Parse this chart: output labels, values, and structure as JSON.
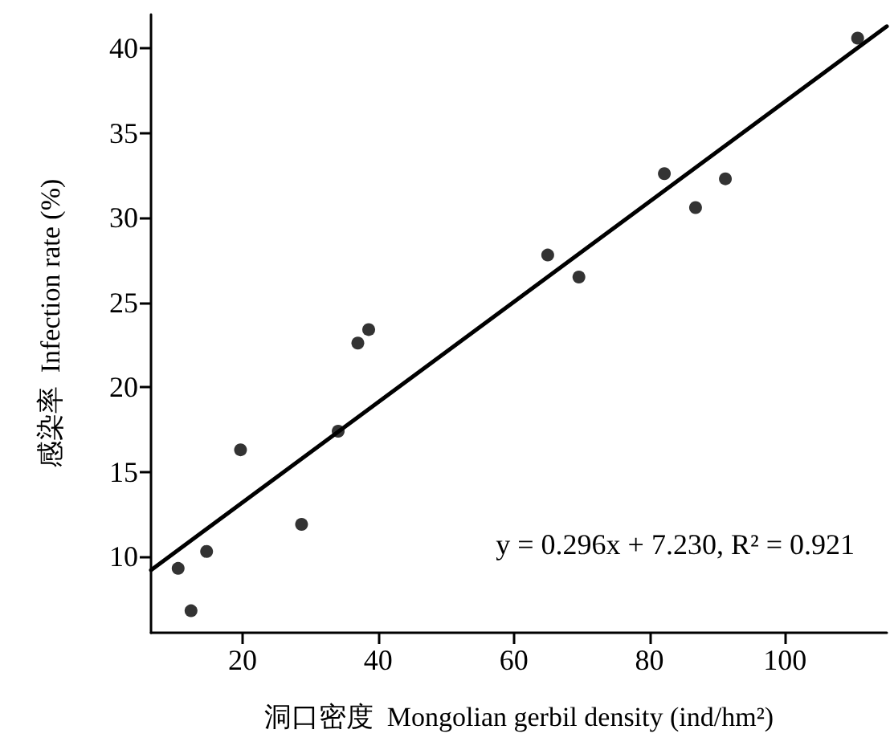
{
  "chart_data": {
    "type": "scatter",
    "xlabel": "洞口密度  Mongolian gerbil density (ind/hm²)",
    "ylabel": "感染率  Infection rate (%)",
    "annotations": [
      "y = 0.296x + 7.230, R² = 0.921"
    ],
    "xlim": [
      6.5,
      115
    ],
    "xticks": [
      20,
      40,
      60,
      80,
      100
    ],
    "ylim": [
      5.5,
      42
    ],
    "yticks": [
      10,
      15,
      20,
      25,
      30,
      35,
      40
    ],
    "grid": false,
    "marker": "circle",
    "series": [
      {
        "color": "#000000",
        "x": [
          10.5,
          12.4,
          14.7,
          19.7,
          28.7,
          34.1,
          37.0,
          38.6,
          65.0,
          69.6,
          82.2,
          86.8,
          91.2,
          110.7
        ],
        "values": [
          9.3,
          6.8,
          10.3,
          16.3,
          11.9,
          17.4,
          22.6,
          23.4,
          27.8,
          26.5,
          32.6,
          30.6,
          32.3,
          40.6
        ]
      },
      {
        "type": "line",
        "color": "#000000",
        "marker": "none",
        "line_style": "solid",
        "x": [
          6.5,
          115
        ],
        "values": [
          9.2,
          41.3
        ]
      }
    ]
  }
}
